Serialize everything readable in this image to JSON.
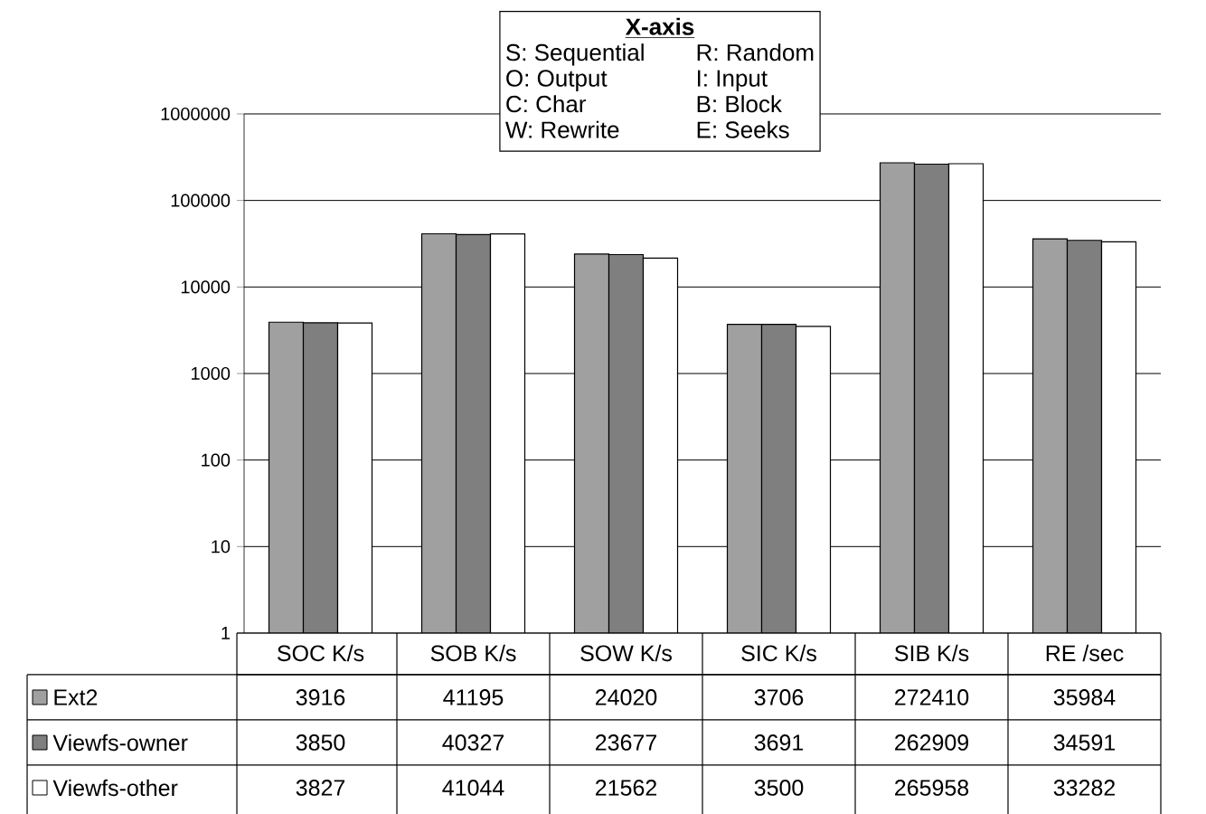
{
  "chart_data": {
    "type": "bar",
    "log": "y",
    "grid": "y",
    "legend": "bottom left",
    "data_labels": true,
    "categories": [
      "SOC K/s",
      "SOB K/s",
      "SOW K/s",
      "SIC K/s",
      "SIB K/s",
      "RE /sec"
    ],
    "ylim": [
      1,
      1000000
    ],
    "yticks": [
      1,
      10,
      100,
      1000,
      10000,
      100000,
      1000000
    ],
    "annotations": [
      "X-axis",
      "S: Sequential",
      "R: Random",
      "O: Output",
      "I: Input",
      "C: Char",
      "B: Block",
      "W: Rewrite",
      "E: Seeks"
    ],
    "series": [
      {
        "name": "Ext2",
        "color": "#a0a0a0",
        "values": [
          3916,
          41195,
          24020,
          3706,
          272410,
          35984
        ]
      },
      {
        "name": "Viewfs-owner",
        "color": "#7f7f7f",
        "values": [
          3850,
          40327,
          23677,
          3691,
          262909,
          34591
        ]
      },
      {
        "name": "Viewfs-other",
        "color": "#ffffff",
        "values": [
          3827,
          41044,
          21562,
          3500,
          265958,
          33282
        ]
      }
    ]
  }
}
